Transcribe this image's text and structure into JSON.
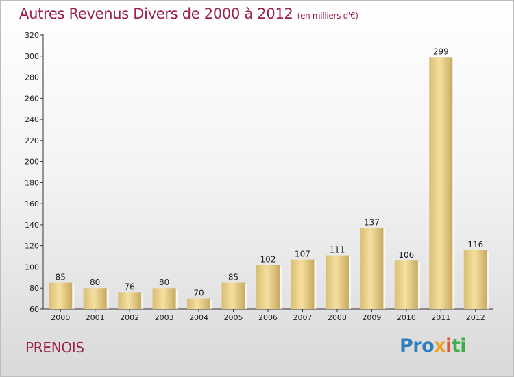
{
  "header": {
    "title": "Autres Revenus Divers de 2000 à 2012",
    "unit": "(en milliers d'€)"
  },
  "footer": {
    "commune": "PRENOIS",
    "logo": "Proxiti"
  },
  "colors": {
    "title": "#9a1f4a",
    "bar_light": "#f5e0a0",
    "bar_dark": "#c8aa60",
    "axis": "#333333"
  },
  "chart_data": {
    "type": "bar",
    "title": "Autres Revenus Divers de 2000 à 2012",
    "subtitle": "(en milliers d'€)",
    "xlabel": "",
    "ylabel": "",
    "categories": [
      "2000",
      "2001",
      "2002",
      "2003",
      "2004",
      "2005",
      "2006",
      "2007",
      "2008",
      "2009",
      "2010",
      "2011",
      "2012"
    ],
    "values": [
      85,
      80,
      76,
      80,
      70,
      85,
      102,
      107,
      111,
      137,
      106,
      299,
      116
    ],
    "ylim": [
      60,
      320
    ],
    "yticks": [
      60,
      80,
      100,
      120,
      140,
      160,
      180,
      200,
      220,
      240,
      260,
      280,
      300,
      320
    ],
    "grid": false,
    "legend": "none"
  }
}
